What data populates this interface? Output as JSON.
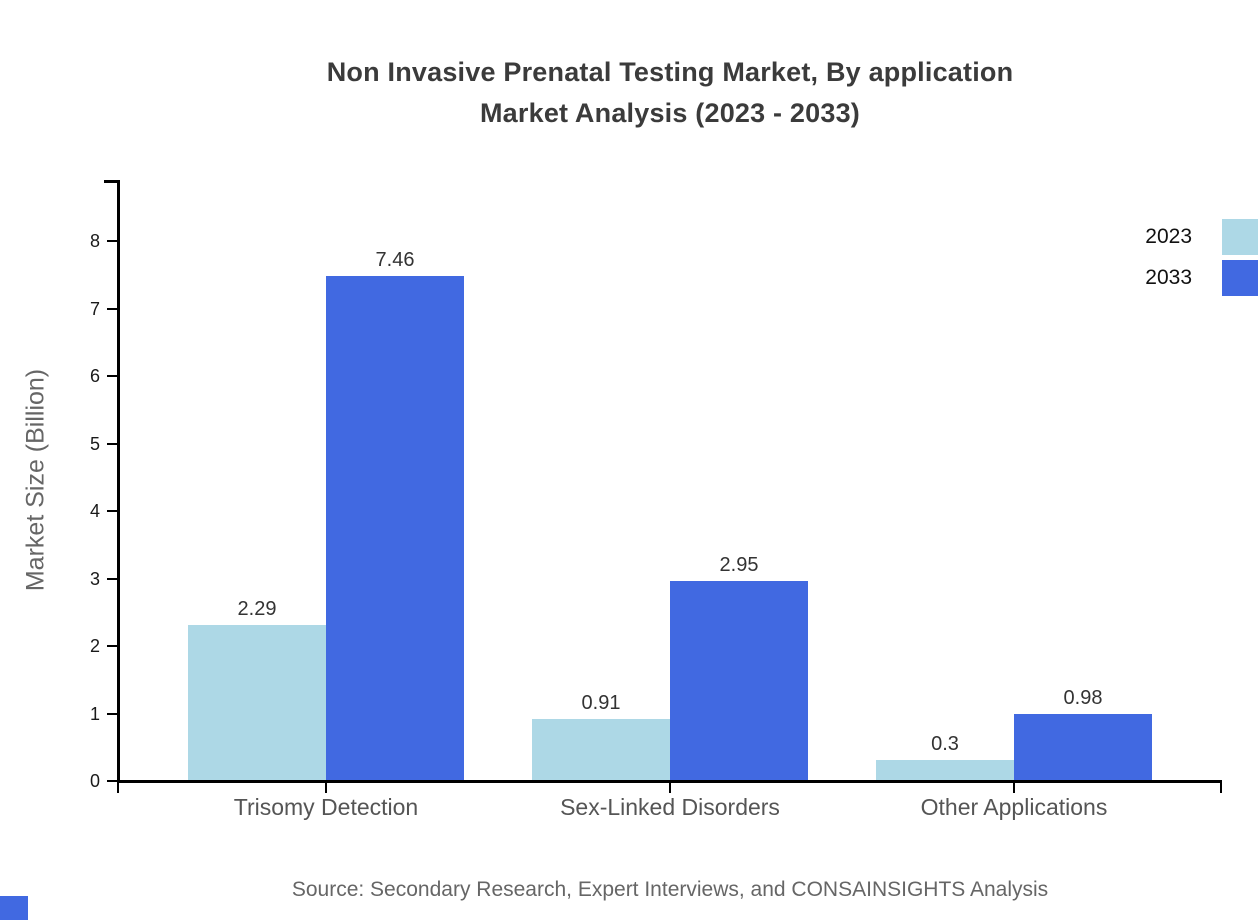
{
  "title": {
    "line1": "Non Invasive Prenatal Testing Market, By application",
    "line2": "Market Analysis (2023 - 2033)"
  },
  "y_axis": {
    "label": "Market Size (Billion)",
    "ticks": [
      "0",
      "1",
      "2",
      "3",
      "4",
      "5",
      "6",
      "7",
      "8"
    ]
  },
  "legend": {
    "items": [
      {
        "label": "2023",
        "color": "#add8e6"
      },
      {
        "label": "2033",
        "color": "#4169e1"
      }
    ]
  },
  "source": "Source: Secondary Research, Expert Interviews, and CONSAINSIGHTS Analysis",
  "brand_color": "#4169e1",
  "chart_data": {
    "type": "bar",
    "title": "Non Invasive Prenatal Testing Market, By application Market Analysis (2023 - 2033)",
    "categories": [
      "Trisomy Detection",
      "Sex-Linked Disorders",
      "Other Applications"
    ],
    "series": [
      {
        "name": "2023",
        "color": "#add8e6",
        "values": [
          2.29,
          0.91,
          0.3
        ]
      },
      {
        "name": "2033",
        "color": "#4169e1",
        "values": [
          7.46,
          2.95,
          0.98
        ]
      }
    ],
    "value_labels": [
      [
        "2.29",
        "0.91",
        "0.3"
      ],
      [
        "7.46",
        "2.95",
        "0.98"
      ]
    ],
    "xlabel": "",
    "ylabel": "Market Size (Billion)",
    "ylim": [
      0,
      8.9
    ],
    "yticks": [
      0,
      1,
      2,
      3,
      4,
      5,
      6,
      7,
      8
    ],
    "grid": false,
    "legend_position": "top-right",
    "bar_value_labels_shown": true
  }
}
